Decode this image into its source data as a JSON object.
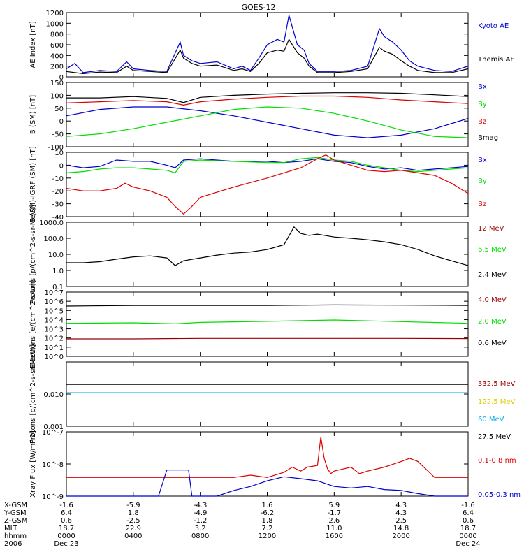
{
  "title": "GOES-12",
  "colors": {
    "black": "#000000",
    "blue": "#0000cc",
    "green": "#00dd00",
    "red": "#dd0000",
    "darkred": "#990000",
    "yellow": "#ddcc00",
    "cyan": "#00aaee"
  },
  "x_range": [
    0,
    24
  ],
  "x_ticks": [
    0,
    4,
    8,
    12,
    16,
    20,
    24
  ],
  "chart_data": [
    {
      "type": "line",
      "id": "ae",
      "ylabel": "AE Index [nT]",
      "ylim": [
        0,
        1200
      ],
      "scale": "linear",
      "yticks": [
        0,
        200,
        400,
        600,
        800,
        1000,
        1200
      ],
      "yticklabels": [
        "0",
        "200",
        "400",
        "600",
        "800",
        "1000",
        "1200"
      ],
      "series": [
        {
          "name": "Kyoto AE",
          "color": "blue",
          "x": [
            0,
            0.5,
            1,
            2,
            3,
            3.6,
            4,
            5,
            6,
            6.8,
            7,
            7.5,
            8,
            9,
            10,
            10.5,
            11,
            11.5,
            12,
            12.6,
            13,
            13.3,
            13.8,
            14.2,
            14.5,
            15,
            16,
            17,
            18,
            18.7,
            19,
            19.5,
            20,
            20.5,
            21,
            22,
            23,
            24
          ],
          "y": [
            150,
            250,
            80,
            120,
            100,
            280,
            150,
            120,
            100,
            650,
            400,
            300,
            250,
            280,
            150,
            200,
            120,
            350,
            600,
            700,
            650,
            1150,
            600,
            500,
            250,
            100,
            100,
            120,
            200,
            900,
            750,
            650,
            500,
            300,
            200,
            120,
            100,
            200
          ]
        },
        {
          "name": "Themis AE",
          "color": "black",
          "x": [
            0,
            1,
            2,
            3,
            3.6,
            4,
            5,
            6,
            6.8,
            7,
            7.5,
            8,
            9,
            10,
            10.5,
            11,
            11.5,
            12,
            12.6,
            13,
            13.3,
            13.8,
            14.2,
            14.5,
            15,
            16,
            17,
            18,
            18.7,
            19,
            19.5,
            20,
            20.5,
            21,
            22,
            23,
            24
          ],
          "y": [
            100,
            60,
            90,
            80,
            200,
            120,
            100,
            80,
            500,
            350,
            250,
            200,
            220,
            120,
            150,
            100,
            250,
            450,
            500,
            480,
            700,
            450,
            350,
            200,
            80,
            80,
            100,
            150,
            550,
            480,
            420,
            300,
            200,
            120,
            80,
            80,
            150
          ]
        }
      ]
    },
    {
      "type": "line",
      "id": "bsm",
      "ylabel": "B (SM) [nT]",
      "ylim": [
        -100,
        150
      ],
      "scale": "linear",
      "yticks": [
        -100,
        -50,
        0,
        50,
        100,
        150
      ],
      "yticklabels": [
        "-100",
        "-50",
        "0",
        "50",
        "100",
        "150"
      ],
      "series": [
        {
          "name": "Bx",
          "color": "blue",
          "x": [
            0,
            2,
            4,
            6,
            8,
            10,
            12,
            14,
            16,
            18,
            20,
            22,
            24
          ],
          "y": [
            20,
            45,
            55,
            55,
            40,
            20,
            -5,
            -30,
            -55,
            -65,
            -55,
            -30,
            10
          ]
        },
        {
          "name": "By",
          "color": "green",
          "x": [
            0,
            2,
            4,
            6,
            8,
            10,
            12,
            14,
            16,
            18,
            20,
            22,
            24
          ],
          "y": [
            -60,
            -50,
            -30,
            -5,
            20,
            45,
            55,
            50,
            30,
            0,
            -35,
            -60,
            -65
          ]
        },
        {
          "name": "Bz",
          "color": "red",
          "x": [
            0,
            2,
            4,
            6,
            7,
            8,
            10,
            12,
            14,
            16,
            18,
            20,
            22,
            24
          ],
          "y": [
            70,
            75,
            80,
            75,
            62,
            75,
            85,
            92,
            97,
            97,
            92,
            82,
            75,
            68
          ]
        },
        {
          "name": "Bmag",
          "color": "black",
          "x": [
            0,
            2,
            4,
            6,
            7,
            8,
            10,
            12,
            14,
            16,
            18,
            20,
            22,
            24
          ],
          "y": [
            90,
            90,
            95,
            88,
            72,
            92,
            100,
            105,
            108,
            110,
            110,
            108,
            102,
            95
          ]
        }
      ]
    },
    {
      "type": "line",
      "id": "bdiff",
      "ylabel": "B (SM)-IGRF (SM) [nT]",
      "ylim": [
        -40,
        10
      ],
      "scale": "linear",
      "yticks": [
        -40,
        -30,
        -20,
        -10,
        0,
        10
      ],
      "yticklabels": [
        "-40",
        "-30",
        "-20",
        "-10",
        "0",
        "10"
      ],
      "series": [
        {
          "name": "Bx",
          "color": "blue",
          "x": [
            0,
            1,
            2,
            3,
            4,
            5,
            6,
            6.5,
            7,
            8,
            10,
            12,
            13,
            14,
            15,
            16,
            17,
            18,
            19,
            20,
            21,
            22,
            23,
            24
          ],
          "y": [
            0,
            -2,
            -1,
            4,
            3,
            3,
            0,
            -2,
            4,
            5,
            3,
            3,
            2,
            3,
            5,
            3,
            2,
            -1,
            -3,
            -2,
            -4,
            -3,
            -2,
            -1
          ]
        },
        {
          "name": "By",
          "color": "green",
          "x": [
            0,
            1,
            2,
            3,
            4,
            5,
            6,
            6.5,
            7,
            8,
            10,
            12,
            13,
            14,
            15,
            16,
            17,
            18,
            19,
            20,
            21,
            22,
            23,
            24
          ],
          "y": [
            -6,
            -5,
            -3,
            -2,
            -2,
            -3,
            -4,
            -6,
            3,
            4,
            3,
            2,
            2,
            5,
            6,
            4,
            3,
            0,
            -2,
            -4,
            -5,
            -4,
            -3,
            -2
          ]
        },
        {
          "name": "Bz",
          "color": "red",
          "x": [
            0,
            1,
            2,
            3,
            3.5,
            4,
            5,
            6,
            6.5,
            7,
            7.5,
            8,
            10,
            12,
            13,
            14,
            15,
            15.5,
            16,
            17,
            18,
            19,
            20,
            21,
            22,
            23,
            24
          ],
          "y": [
            -18,
            -20,
            -20,
            -18,
            -14,
            -17,
            -20,
            -25,
            -32,
            -38,
            -32,
            -25,
            -17,
            -10,
            -6,
            -2,
            5,
            8,
            4,
            0,
            -4,
            -5,
            -4,
            -6,
            -8,
            -14,
            -22
          ]
        }
      ]
    },
    {
      "type": "line",
      "id": "protons1",
      "ylabel": "Protons [p/(cm^2-s-sr-MeV)]",
      "ylim": [
        0.1,
        1000
      ],
      "scale": "log",
      "yticks": [
        0.1,
        1,
        10,
        100,
        1000
      ],
      "yticklabels": [
        "0.1",
        "1.0",
        "10.0",
        "100.0",
        "1000.0"
      ],
      "series": [
        {
          "name": "12 MeV",
          "color": "darkred",
          "x": [],
          "y": []
        },
        {
          "name": "6.5 MeV",
          "color": "green",
          "x": [],
          "y": []
        },
        {
          "name": "2.4 MeV",
          "color": "black",
          "x": [
            0,
            1,
            2,
            3,
            4,
            5,
            6,
            6.5,
            7,
            8,
            9,
            10,
            11,
            12,
            13,
            13.6,
            14,
            14.5,
            15,
            16,
            17,
            18,
            19,
            20,
            21,
            22,
            23,
            24
          ],
          "y": [
            3,
            3,
            3.5,
            5,
            7,
            8,
            6,
            2,
            4,
            6,
            9,
            12,
            14,
            20,
            40,
            500,
            200,
            150,
            180,
            120,
            100,
            80,
            60,
            40,
            20,
            8,
            4,
            2
          ]
        }
      ]
    },
    {
      "type": "line",
      "id": "electrons",
      "ylabel": "Electrons [e/(cm^2-s-sr)]",
      "ylim": [
        1,
        10000000
      ],
      "scale": "log",
      "yticks": [
        1,
        10,
        100,
        1000,
        10000,
        100000,
        1000000,
        10000000
      ],
      "yticklabels": [
        "10^0",
        "10^1",
        "10^2",
        "10^3",
        "10^4",
        "10^5",
        "10^6",
        "10^7"
      ],
      "series": [
        {
          "name": "4.0 MeV",
          "color": "darkred",
          "x": [
            0,
            4,
            8,
            12,
            16,
            20,
            24
          ],
          "y": [
            80,
            80,
            90,
            90,
            90,
            90,
            85
          ]
        },
        {
          "name": "2.0 MeV",
          "color": "green",
          "x": [
            0,
            4,
            6.5,
            8,
            12,
            16,
            20,
            24
          ],
          "y": [
            4000,
            4500,
            3500,
            5000,
            6500,
            9000,
            6000,
            4000
          ]
        },
        {
          "name": "0.6 MeV",
          "color": "black",
          "x": [
            0,
            4,
            8,
            12,
            16,
            20,
            24
          ],
          "y": [
            300000,
            350000,
            350000,
            350000,
            400000,
            380000,
            350000
          ]
        }
      ]
    },
    {
      "type": "line",
      "id": "protons2",
      "ylabel": "Protons [p/(cm^2-s-sr-MeV)]",
      "ylim": [
        0.001,
        0.1
      ],
      "scale": "log",
      "yticks": [
        0.001,
        0.01
      ],
      "yticklabels": [
        "0.001",
        "0.010"
      ],
      "series": [
        {
          "name": "332.5 MeV",
          "color": "darkred",
          "x": [],
          "y": []
        },
        {
          "name": "122.5 MeV",
          "color": "yellow",
          "x": [],
          "y": []
        },
        {
          "name": "60 MeV",
          "color": "cyan",
          "x": [
            0,
            24
          ],
          "y": [
            0.011,
            0.011
          ]
        },
        {
          "name": "27.5 MeV",
          "color": "black",
          "x": [
            0,
            24
          ],
          "y": [
            0.02,
            0.02
          ]
        }
      ]
    },
    {
      "type": "line",
      "id": "xray",
      "ylabel": "Xray Flux [W/m^2]",
      "ylim": [
        1e-09,
        1e-07
      ],
      "scale": "log",
      "yticks": [
        1e-09,
        1e-08,
        1e-07
      ],
      "yticklabels": [
        "10^-9",
        "10^-8",
        "10^-7"
      ],
      "series": [
        {
          "name": "0.1-0.8 nm",
          "color": "red",
          "x": [
            0,
            10,
            11,
            12,
            13,
            13.5,
            14,
            14.4,
            15,
            15.2,
            15.4,
            15.6,
            15.8,
            16,
            17,
            17.5,
            18,
            19,
            20,
            20.5,
            21,
            22,
            23,
            24
          ],
          "y": [
            3.8e-09,
            3.8e-09,
            4.5e-09,
            3.8e-09,
            5.5e-09,
            8e-09,
            6e-09,
            8e-09,
            9e-09,
            7e-08,
            1.5e-08,
            7e-09,
            5e-09,
            6e-09,
            8e-09,
            5e-09,
            6e-09,
            8e-09,
            1.2e-08,
            1.5e-08,
            1.2e-08,
            3.8e-09,
            3.8e-09,
            3.8e-09
          ]
        },
        {
          "name": "0.05-0.3 nm",
          "color": "blue",
          "x": [
            0,
            5.5,
            6,
            7.3,
            7.5,
            9,
            10,
            11,
            12,
            13,
            14,
            15,
            16,
            17,
            18,
            19,
            20,
            21,
            22,
            23,
            24
          ],
          "y": [
            1e-09,
            1e-09,
            6.5e-09,
            6.5e-09,
            1e-09,
            1e-09,
            1.5e-09,
            2e-09,
            3e-09,
            4e-09,
            3.5e-09,
            3e-09,
            2e-09,
            1.8e-09,
            2e-09,
            1.6e-09,
            1.5e-09,
            1.2e-09,
            1e-09,
            1e-09,
            1e-09
          ]
        }
      ]
    }
  ],
  "footer": {
    "rows": [
      {
        "label": "X-GSM",
        "values": [
          "-1.6",
          "-5.9",
          "-4.3",
          "1.6",
          "5.9",
          "4.3",
          "-1.6"
        ]
      },
      {
        "label": "Y-GSM",
        "values": [
          "6.4",
          "1.8",
          "-4.9",
          "-6.2",
          "-1.7",
          "4.3",
          "6.4"
        ]
      },
      {
        "label": "Z-GSM",
        "values": [
          "0.6",
          "-2.5",
          "-1.2",
          "1.8",
          "2.6",
          "2.5",
          "0.6"
        ]
      },
      {
        "label": "MLT",
        "values": [
          "18.7",
          "22.9",
          "3.2",
          "7.2",
          "11.0",
          "14.8",
          "18.7"
        ]
      },
      {
        "label": "hhmm",
        "values": [
          "0000",
          "0400",
          "0800",
          "1200",
          "1600",
          "2000",
          "0000"
        ]
      },
      {
        "label": "2006",
        "values": [
          "Dec 23",
          "",
          "",
          "",
          "",
          "",
          "Dec 24"
        ]
      }
    ]
  }
}
